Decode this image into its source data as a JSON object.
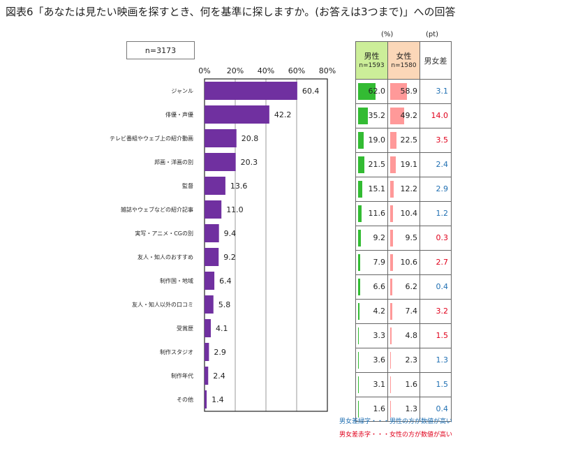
{
  "title": "図表6「あなたは見たい映画を探すとき、何を基準に探しますか。(お答えは3つまで)」への回答",
  "sample": "n=3173",
  "units": {
    "pct": "(%)",
    "pt": "(pt)"
  },
  "table": {
    "male_label": "男性",
    "male_n": "n=1593",
    "female_label": "女性",
    "female_n": "n=1580",
    "diff_label": "男女差",
    "male_bar_color": "#33bb33",
    "female_bar_color": "#ff9999",
    "male_header_color": "#ccee99",
    "female_header_color": "#fbd7b8",
    "rows": [
      {
        "male": "62.0",
        "female": "58.9",
        "diff": "3.1",
        "color": "#1f6fb2"
      },
      {
        "male": "35.2",
        "female": "49.2",
        "diff": "14.0",
        "color": "#e0001b"
      },
      {
        "male": "19.0",
        "female": "22.5",
        "diff": "3.5",
        "color": "#e0001b"
      },
      {
        "male": "21.5",
        "female": "19.1",
        "diff": "2.4",
        "color": "#1f6fb2"
      },
      {
        "male": "15.1",
        "female": "12.2",
        "diff": "2.9",
        "color": "#1f6fb2"
      },
      {
        "male": "11.6",
        "female": "10.4",
        "diff": "1.2",
        "color": "#1f6fb2"
      },
      {
        "male": "9.2",
        "female": "9.5",
        "diff": "0.3",
        "color": "#e0001b"
      },
      {
        "male": "7.9",
        "female": "10.6",
        "diff": "2.7",
        "color": "#e0001b"
      },
      {
        "male": "6.6",
        "female": "6.2",
        "diff": "0.4",
        "color": "#1f6fb2"
      },
      {
        "male": "4.2",
        "female": "7.4",
        "diff": "3.2",
        "color": "#e0001b"
      },
      {
        "male": "3.3",
        "female": "4.8",
        "diff": "1.5",
        "color": "#e0001b"
      },
      {
        "male": "3.6",
        "female": "2.3",
        "diff": "1.3",
        "color": "#1f6fb2"
      },
      {
        "male": "3.1",
        "female": "1.6",
        "diff": "1.5",
        "color": "#1f6fb2"
      },
      {
        "male": "1.6",
        "female": "1.3",
        "diff": "0.4",
        "color": "#1f6fb2"
      }
    ]
  },
  "notes": [
    {
      "text": "男女差緑字・・・男性の方が数値が高い",
      "color": "#1f6fb2"
    },
    {
      "text": "男女差赤字・・・女性の方が数値が高い",
      "color": "#e0001b"
    }
  ],
  "chart_data": {
    "type": "bar",
    "orientation": "horizontal",
    "bar_color": "#7030a0",
    "categories": [
      "ジャンル",
      "俳優・声優",
      "テレビ番組やウェブ上の紹介動画",
      "邦画・洋画の別",
      "監督",
      "雑誌やウェブなどの紹介記事",
      "実写・アニメ・CGの別",
      "友人・知人のおすすめ",
      "制作国・地域",
      "友人・知人以外の口コミ",
      "受賞歴",
      "制作スタジオ",
      "制作年代",
      "その他"
    ],
    "values": [
      60.4,
      42.2,
      20.8,
      20.3,
      13.6,
      11.0,
      9.4,
      9.2,
      6.4,
      5.8,
      4.1,
      2.9,
      2.4,
      1.4
    ],
    "value_labels": [
      "60.4",
      "42.2",
      "20.8",
      "20.3",
      "13.6",
      "11.0",
      "9.4",
      "9.2",
      "6.4",
      "5.8",
      "4.1",
      "2.9",
      "2.4",
      "1.4"
    ],
    "xlim": [
      0,
      80
    ],
    "ticks": [
      0,
      20,
      40,
      60,
      80
    ],
    "tick_labels": [
      "0%",
      "20%",
      "40%",
      "60%",
      "80%"
    ],
    "grid": true
  }
}
